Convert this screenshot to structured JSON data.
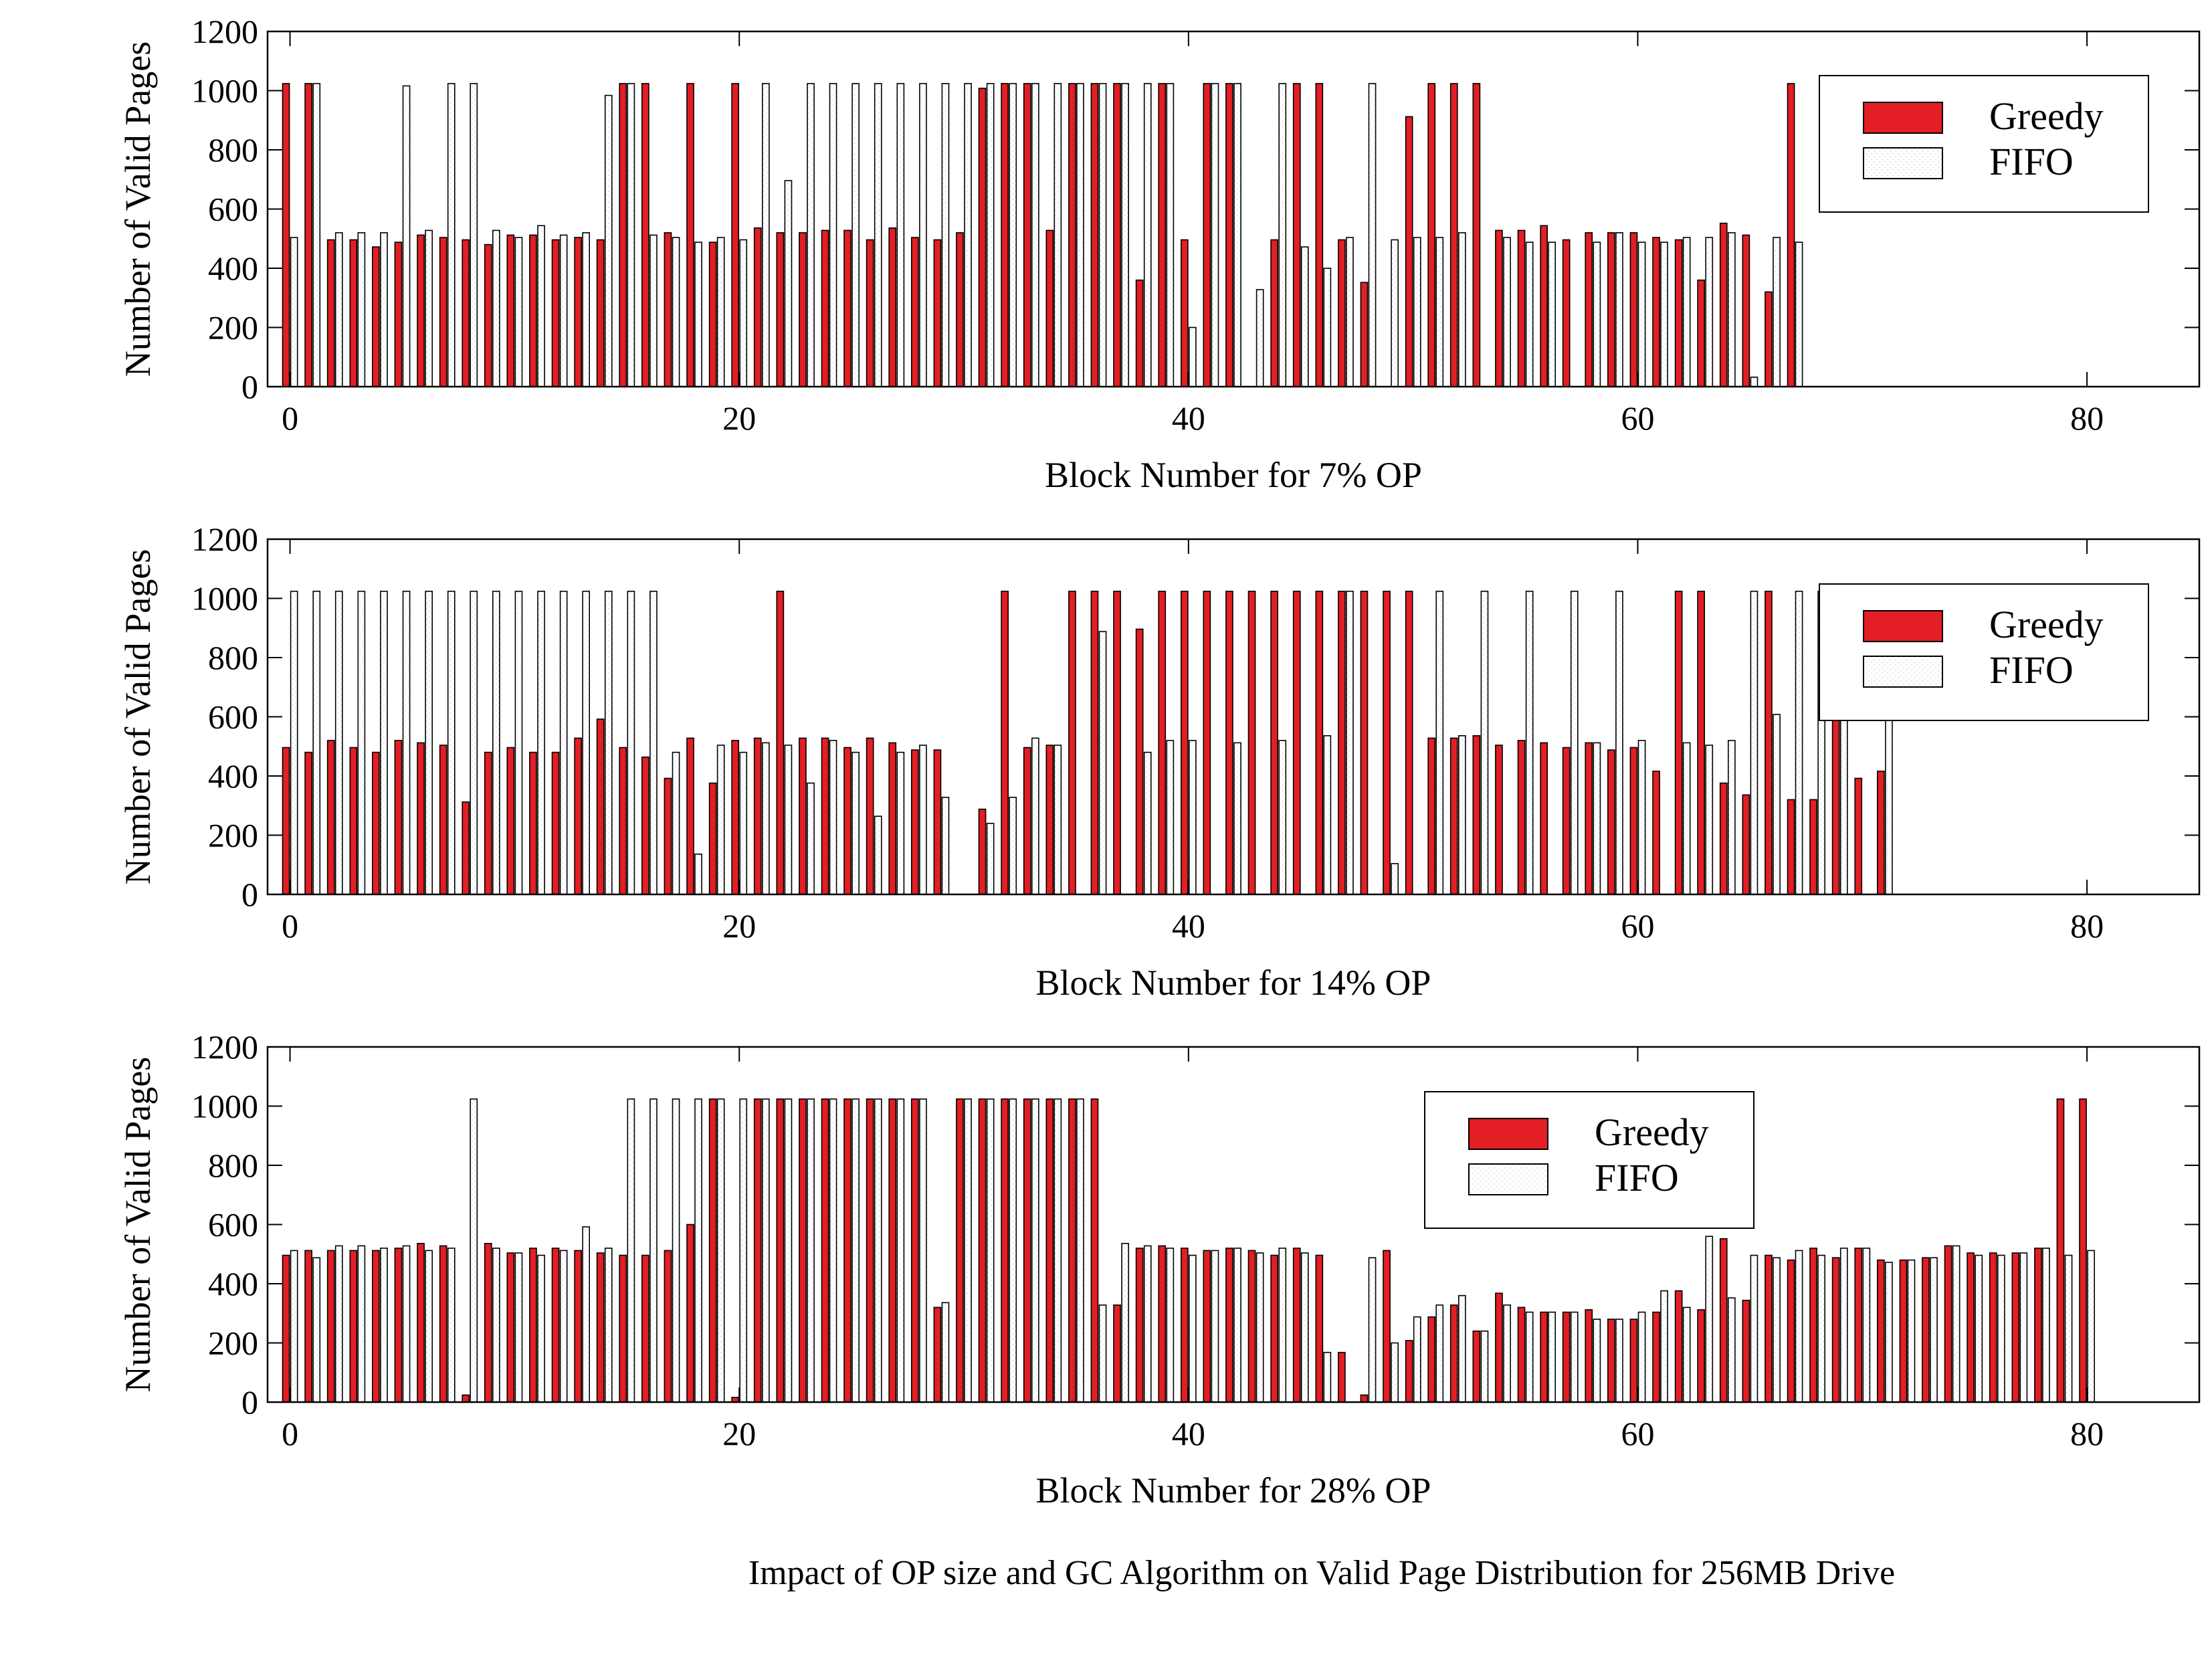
{
  "caption": "Impact of OP size and GC Algorithm on Valid Page Distribution for 256MB Drive",
  "colors": {
    "greedy": "#e31e24",
    "fifo": "#ffffff",
    "fifo_hatch": "#c9d6e3",
    "edge": "#000000"
  },
  "chart_data": [
    {
      "type": "bar",
      "title": "",
      "xlabel": "Block Number for 7% OP",
      "ylabel": "Number of Valid Pages",
      "xlim": [
        -1,
        85
      ],
      "ylim": [
        0,
        1200
      ],
      "xticks": [
        0,
        20,
        40,
        60,
        80
      ],
      "yticks": [
        0,
        200,
        400,
        600,
        800,
        1000,
        1200
      ],
      "legend": "top-right",
      "x": [
        0,
        1,
        2,
        3,
        4,
        5,
        6,
        7,
        8,
        9,
        10,
        11,
        12,
        13,
        14,
        15,
        16,
        17,
        18,
        19,
        20,
        21,
        22,
        23,
        24,
        25,
        26,
        27,
        28,
        29,
        30,
        31,
        32,
        33,
        34,
        35,
        36,
        37,
        38,
        39,
        40,
        41,
        42,
        43,
        44,
        45,
        46,
        47,
        48,
        49,
        50,
        51,
        52,
        53,
        54,
        55,
        56,
        57,
        58,
        59,
        60,
        61,
        62,
        63,
        64,
        65,
        66,
        67
      ],
      "series": [
        {
          "name": "Greedy",
          "values": [
            1024,
            1024,
            496,
            496,
            472,
            488,
            512,
            504,
            496,
            480,
            512,
            512,
            496,
            504,
            496,
            1024,
            1024,
            520,
            1024,
            488,
            1024,
            536,
            520,
            520,
            528,
            528,
            496,
            536,
            504,
            496,
            520,
            1008,
            1024,
            1024,
            528,
            1024,
            1024,
            1024,
            360,
            1024,
            496,
            1024,
            1024,
            0,
            496,
            1024,
            1024,
            496,
            352,
            0,
            912,
            1024,
            1024,
            1024,
            528,
            528,
            544,
            496,
            520,
            520,
            520,
            504,
            496,
            360,
            552,
            512,
            320,
            1024
          ]
        },
        {
          "name": "FIFO",
          "values": [
            504,
            1024,
            520,
            520,
            520,
            1016,
            528,
            1024,
            1024,
            528,
            504,
            544,
            512,
            520,
            984,
            1024,
            512,
            504,
            488,
            504,
            496,
            1024,
            696,
            1024,
            1024,
            1024,
            1024,
            1024,
            1024,
            1024,
            1024,
            1024,
            1024,
            1024,
            1024,
            1024,
            1024,
            1024,
            1024,
            1024,
            200,
            1024,
            1024,
            328,
            1024,
            472,
            400,
            504,
            1024,
            496,
            504,
            504,
            520,
            0,
            504,
            488,
            488,
            0,
            488,
            520,
            488,
            488,
            504,
            504,
            520,
            32,
            504,
            488
          ]
        }
      ]
    },
    {
      "type": "bar",
      "title": "",
      "xlabel": "Block Number for 14% OP",
      "ylabel": "Number of Valid Pages",
      "xlim": [
        -1,
        85
      ],
      "ylim": [
        0,
        1200
      ],
      "xticks": [
        0,
        20,
        40,
        60,
        80
      ],
      "yticks": [
        0,
        200,
        400,
        600,
        800,
        1000,
        1200
      ],
      "legend": "top-right",
      "x": [
        0,
        1,
        2,
        3,
        4,
        5,
        6,
        7,
        8,
        9,
        10,
        11,
        12,
        13,
        14,
        15,
        16,
        17,
        18,
        19,
        20,
        21,
        22,
        23,
        24,
        25,
        26,
        27,
        28,
        29,
        30,
        31,
        32,
        33,
        34,
        35,
        36,
        37,
        38,
        39,
        40,
        41,
        42,
        43,
        44,
        45,
        46,
        47,
        48,
        49,
        50,
        51,
        52,
        53,
        54,
        55,
        56,
        57,
        58,
        59,
        60,
        61,
        62,
        63,
        64,
        65,
        66,
        67,
        68,
        69,
        70,
        71
      ],
      "series": [
        {
          "name": "Greedy",
          "values": [
            496,
            480,
            520,
            496,
            480,
            520,
            512,
            504,
            312,
            480,
            496,
            480,
            480,
            528,
            592,
            496,
            464,
            392,
            528,
            376,
            520,
            528,
            1024,
            528,
            528,
            496,
            528,
            512,
            488,
            488,
            0,
            288,
            1024,
            496,
            504,
            1024,
            1024,
            1024,
            896,
            1024,
            1024,
            1024,
            1024,
            1024,
            1024,
            1024,
            1024,
            1024,
            1024,
            1024,
            1024,
            528,
            528,
            536,
            504,
            520,
            512,
            496,
            512,
            488,
            496,
            416,
            1024,
            1024,
            376,
            336,
            1024,
            320,
            320,
            1024,
            392,
            416
          ]
        },
        {
          "name": "FIFO",
          "values": [
            1024,
            1024,
            1024,
            1024,
            1024,
            1024,
            1024,
            1024,
            1024,
            1024,
            1024,
            1024,
            1024,
            1024,
            1024,
            1024,
            1024,
            480,
            136,
            504,
            480,
            512,
            504,
            376,
            520,
            480,
            264,
            480,
            504,
            328,
            0,
            240,
            328,
            528,
            504,
            0,
            888,
            0,
            480,
            520,
            520,
            0,
            512,
            0,
            520,
            0,
            536,
            1024,
            0,
            104,
            0,
            1024,
            536,
            1024,
            0,
            1024,
            0,
            1024,
            512,
            1024,
            520,
            0,
            512,
            504,
            520,
            1024,
            608,
            1024,
            1024,
            1024,
            0,
            1024
          ]
        }
      ]
    },
    {
      "type": "bar",
      "title": "",
      "xlabel": "Block Number for 28% OP",
      "ylabel": "Number of Valid Pages",
      "xlim": [
        -1,
        85
      ],
      "ylim": [
        0,
        1200
      ],
      "xticks": [
        0,
        20,
        40,
        60,
        80
      ],
      "yticks": [
        0,
        200,
        400,
        600,
        800,
        1000,
        1200
      ],
      "legend": "top-center",
      "x": [
        0,
        1,
        2,
        3,
        4,
        5,
        6,
        7,
        8,
        9,
        10,
        11,
        12,
        13,
        14,
        15,
        16,
        17,
        18,
        19,
        20,
        21,
        22,
        23,
        24,
        25,
        26,
        27,
        28,
        29,
        30,
        31,
        32,
        33,
        34,
        35,
        36,
        37,
        38,
        39,
        40,
        41,
        42,
        43,
        44,
        45,
        46,
        47,
        48,
        49,
        50,
        51,
        52,
        53,
        54,
        55,
        56,
        57,
        58,
        59,
        60,
        61,
        62,
        63,
        64,
        65,
        66,
        67,
        68,
        69,
        70,
        71,
        72,
        73,
        74,
        75,
        76,
        77,
        78,
        79,
        80
      ],
      "series": [
        {
          "name": "Greedy",
          "values": [
            496,
            512,
            512,
            512,
            512,
            520,
            536,
            528,
            24,
            536,
            504,
            520,
            520,
            512,
            504,
            496,
            496,
            512,
            600,
            1024,
            16,
            1024,
            1024,
            1024,
            1024,
            1024,
            1024,
            1024,
            1024,
            320,
            1024,
            1024,
            1024,
            1024,
            1024,
            1024,
            1024,
            328,
            520,
            528,
            520,
            512,
            520,
            512,
            496,
            520,
            496,
            168,
            24,
            512,
            208,
            288,
            328,
            240,
            368,
            320,
            304,
            304,
            312,
            280,
            280,
            304,
            376,
            312,
            552,
            344,
            496,
            480,
            520,
            488,
            520,
            480,
            480,
            488,
            528,
            504,
            504,
            504,
            520,
            1024,
            1024
          ]
        },
        {
          "name": "FIFO",
          "values": [
            512,
            488,
            528,
            528,
            520,
            528,
            512,
            520,
            1024,
            520,
            504,
            496,
            512,
            592,
            520,
            1024,
            1024,
            1024,
            1024,
            1024,
            1024,
            1024,
            1024,
            1024,
            1024,
            1024,
            1024,
            1024,
            1024,
            336,
            1024,
            1024,
            1024,
            1024,
            1024,
            1024,
            328,
            536,
            528,
            520,
            496,
            512,
            520,
            504,
            520,
            504,
            168,
            0,
            488,
            200,
            288,
            328,
            360,
            240,
            328,
            304,
            304,
            304,
            280,
            280,
            304,
            376,
            320,
            560,
            352,
            496,
            488,
            512,
            496,
            520,
            520,
            472,
            480,
            488,
            528,
            496,
            496,
            504,
            520,
            496,
            512
          ]
        }
      ]
    }
  ]
}
